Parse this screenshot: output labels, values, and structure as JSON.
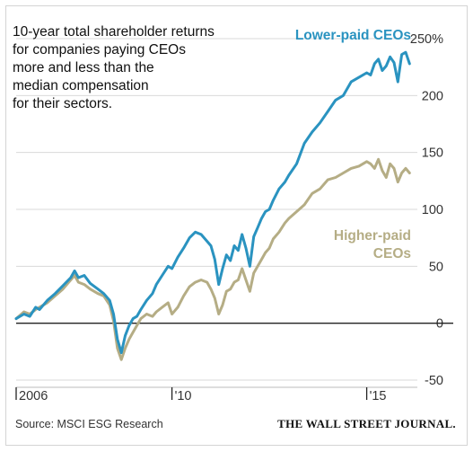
{
  "title_lines": [
    "10-year total shareholder returns",
    "for companies paying CEOs",
    "more and less than the",
    "median compensation",
    "for their sectors."
  ],
  "source": "Source: MSCI ESG Research",
  "publisher": "THE WALL STREET JOURNAL.",
  "colors": {
    "lower": "#2a93c0",
    "higher": "#b5ad85",
    "grid": "#d9d9d9",
    "axis": "#222222"
  },
  "chart_data": {
    "type": "line",
    "title": "10-year total shareholder returns for companies paying CEOs more and less than the median compensation for their sectors.",
    "xlabel": "",
    "ylabel": "",
    "xlim": [
      2006.0,
      2016.3
    ],
    "ylim": [
      -50,
      250
    ],
    "y_ticks": [
      {
        "value": 250,
        "label": "250%"
      },
      {
        "value": 200,
        "label": "200"
      },
      {
        "value": 150,
        "label": "150"
      },
      {
        "value": 100,
        "label": "100"
      },
      {
        "value": 50,
        "label": "50"
      },
      {
        "value": 0,
        "label": "0"
      },
      {
        "value": -50,
        "label": "-50"
      }
    ],
    "x_ticks": [
      {
        "value": 2006.0,
        "label": "2006"
      },
      {
        "value": 2010.0,
        "label": "'10"
      },
      {
        "value": 2015.0,
        "label": "'15"
      }
    ],
    "grid": true,
    "series": [
      {
        "name": "Lower-paid CEOs",
        "label_lines": [
          "Lower-paid CEOs"
        ],
        "x": [
          2006.0,
          2006.2,
          2006.35,
          2006.5,
          2006.6,
          2006.8,
          2007.0,
          2007.2,
          2007.4,
          2007.5,
          2007.6,
          2007.75,
          2007.9,
          2008.1,
          2008.25,
          2008.4,
          2008.5,
          2008.6,
          2008.7,
          2008.8,
          2008.9,
          2009.0,
          2009.1,
          2009.2,
          2009.35,
          2009.5,
          2009.6,
          2009.75,
          2009.9,
          2010.0,
          2010.15,
          2010.3,
          2010.45,
          2010.6,
          2010.75,
          2010.9,
          2011.0,
          2011.1,
          2011.2,
          2011.3,
          2011.4,
          2011.5,
          2011.6,
          2011.7,
          2011.8,
          2011.9,
          2012.0,
          2012.1,
          2012.2,
          2012.3,
          2012.4,
          2012.5,
          2012.6,
          2012.75,
          2012.9,
          2013.0,
          2013.2,
          2013.4,
          2013.6,
          2013.8,
          2014.0,
          2014.2,
          2014.4,
          2014.6,
          2014.8,
          2015.0,
          2015.1,
          2015.2,
          2015.3,
          2015.4,
          2015.5,
          2015.6,
          2015.7,
          2015.8,
          2015.9,
          2016.0,
          2016.1
        ],
        "y": [
          4,
          8,
          6,
          14,
          12,
          20,
          26,
          33,
          40,
          46,
          40,
          42,
          35,
          30,
          26,
          20,
          8,
          -14,
          -26,
          -11,
          -2,
          4,
          6,
          12,
          20,
          26,
          34,
          42,
          50,
          48,
          58,
          66,
          75,
          80,
          78,
          72,
          68,
          56,
          34,
          48,
          60,
          55,
          68,
          64,
          78,
          66,
          50,
          76,
          84,
          92,
          98,
          100,
          108,
          118,
          124,
          130,
          140,
          158,
          168,
          176,
          186,
          196,
          200,
          212,
          216,
          220,
          218,
          228,
          232,
          222,
          226,
          234,
          229,
          212,
          236,
          238,
          228
        ]
      },
      {
        "name": "Higher-paid CEOs",
        "label_lines": [
          "Higher-paid",
          "CEOs"
        ],
        "x": [
          2006.0,
          2006.2,
          2006.35,
          2006.5,
          2006.6,
          2006.8,
          2007.0,
          2007.2,
          2007.4,
          2007.5,
          2007.6,
          2007.75,
          2007.9,
          2008.1,
          2008.25,
          2008.4,
          2008.5,
          2008.6,
          2008.7,
          2008.8,
          2008.9,
          2009.0,
          2009.1,
          2009.2,
          2009.35,
          2009.5,
          2009.6,
          2009.75,
          2009.9,
          2010.0,
          2010.15,
          2010.3,
          2010.45,
          2010.6,
          2010.75,
          2010.9,
          2011.0,
          2011.1,
          2011.2,
          2011.3,
          2011.4,
          2011.5,
          2011.6,
          2011.7,
          2011.8,
          2011.9,
          2012.0,
          2012.1,
          2012.2,
          2012.3,
          2012.4,
          2012.5,
          2012.6,
          2012.75,
          2012.9,
          2013.0,
          2013.2,
          2013.4,
          2013.6,
          2013.8,
          2014.0,
          2014.2,
          2014.4,
          2014.6,
          2014.8,
          2015.0,
          2015.1,
          2015.2,
          2015.3,
          2015.4,
          2015.5,
          2015.6,
          2015.7,
          2015.8,
          2015.9,
          2016.0,
          2016.1
        ],
        "y": [
          4,
          10,
          8,
          12,
          14,
          18,
          24,
          30,
          38,
          42,
          36,
          34,
          30,
          26,
          24,
          16,
          2,
          -22,
          -32,
          -22,
          -14,
          -8,
          -2,
          4,
          8,
          6,
          10,
          14,
          18,
          8,
          14,
          24,
          32,
          36,
          38,
          36,
          30,
          22,
          8,
          16,
          28,
          30,
          36,
          38,
          48,
          38,
          28,
          44,
          50,
          56,
          62,
          66,
          74,
          80,
          88,
          92,
          98,
          104,
          114,
          118,
          126,
          128,
          132,
          136,
          138,
          142,
          140,
          136,
          144,
          134,
          128,
          140,
          136,
          124,
          132,
          136,
          132
        ]
      }
    ]
  }
}
